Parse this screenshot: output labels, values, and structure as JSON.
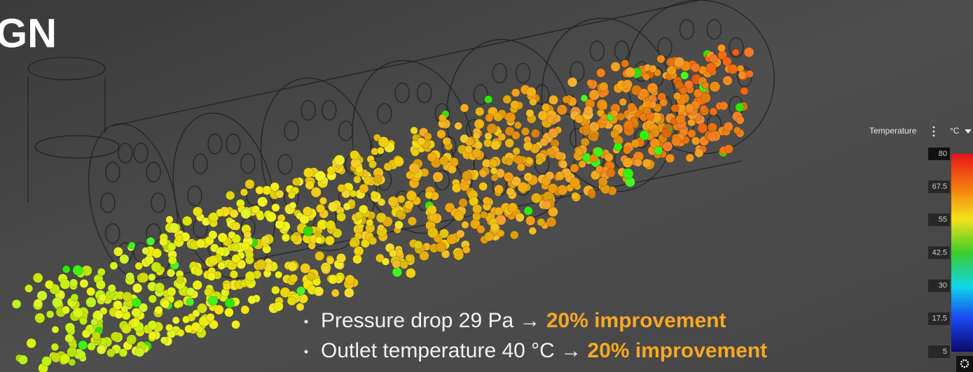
{
  "heading": "GN",
  "bullets": [
    {
      "text": "Pressure drop 29 Pa →",
      "highlight": "20% improvement"
    },
    {
      "text": "Outlet temperature 40 °C →",
      "highlight": "20% improvement"
    }
  ],
  "colorbar": {
    "title": "Temperature",
    "unit": "°C",
    "range": [
      5,
      80
    ],
    "ticks": [
      80,
      67.5,
      55,
      42.5,
      30,
      17.5,
      5
    ]
  }
}
